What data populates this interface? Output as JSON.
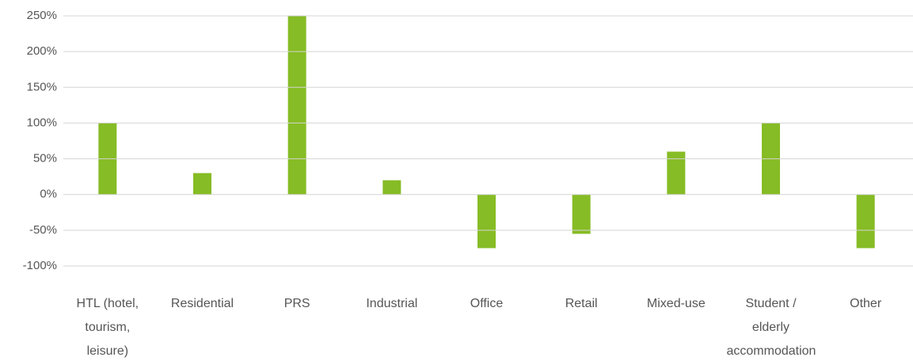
{
  "chart_data": {
    "type": "bar",
    "categories": [
      "HTL (hotel, tourism, leisure)",
      "Residential",
      "PRS",
      "Industrial",
      "Office",
      "Retail",
      "Mixed-use",
      "Student / elderly accommodation",
      "Other"
    ],
    "values": [
      100,
      30,
      250,
      20,
      -75,
      -55,
      60,
      100,
      -75
    ],
    "color": "#86bc25",
    "ylim": [
      -100,
      250
    ],
    "yticks": [
      {
        "value": 250,
        "label": "250%"
      },
      {
        "value": 200,
        "label": "200%"
      },
      {
        "value": 150,
        "label": "150%"
      },
      {
        "value": 100,
        "label": "100%"
      },
      {
        "value": 50,
        "label": "50%"
      },
      {
        "value": 0,
        "label": "0%"
      },
      {
        "value": -50,
        "label": "-50%"
      },
      {
        "value": -100,
        "label": "-100%"
      }
    ],
    "grid": true
  }
}
